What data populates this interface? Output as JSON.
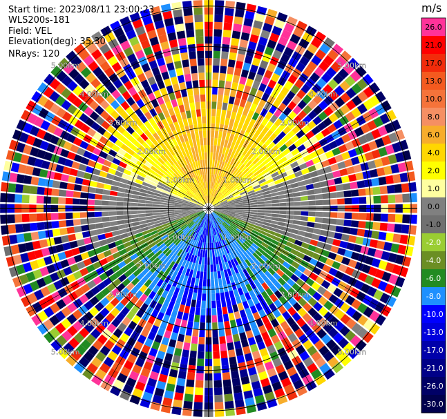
{
  "header": {
    "start_time": "Start time: 2023/08/11 23:00:23",
    "instrument": "WLS200s-181",
    "field": "Field: VEL",
    "elevation": "Elevation(deg): 35.30",
    "nrays": "NRays: 120"
  },
  "colorbar": {
    "unit": "m/s",
    "levels": [
      {
        "label": "26.0",
        "color": "#ff3399"
      },
      {
        "label": "21.0",
        "color": "#ff0000"
      },
      {
        "label": "17.0",
        "color": "#f22c0b"
      },
      {
        "label": "13.0",
        "color": "#f45a1f"
      },
      {
        "label": "10.0",
        "color": "#f5733a"
      },
      {
        "label": "8.0",
        "color": "#f58f63"
      },
      {
        "label": "6.0",
        "color": "#f7ad2b"
      },
      {
        "label": "4.0",
        "color": "#ffd700"
      },
      {
        "label": "2.0",
        "color": "#ffff00"
      },
      {
        "label": "1.0",
        "color": "#ffffa0"
      },
      {
        "label": "0.0",
        "color": "#808080"
      },
      {
        "label": "-1.0",
        "color": "#707070"
      },
      {
        "label": "-2.0",
        "color": "#9acd32"
      },
      {
        "label": "-4.0",
        "color": "#6b8e23"
      },
      {
        "label": "-6.0",
        "color": "#228b22"
      },
      {
        "label": "-8.0",
        "color": "#1e90ff"
      },
      {
        "label": "-10.0",
        "color": "#0000ff"
      },
      {
        "label": "-13.0",
        "color": "#0000dd"
      },
      {
        "label": "-17.0",
        "color": "#0000aa"
      },
      {
        "label": "-21.0",
        "color": "#000088"
      },
      {
        "label": "-26.0",
        "color": "#000066"
      },
      {
        "label": "-30.0",
        "color": "#00004d"
      }
    ]
  },
  "chart_data": {
    "type": "heatmap",
    "projection": "polar PPI",
    "field": "VEL",
    "nrays": 120,
    "range_ring_labels": [
      "1.00km",
      "2.00km",
      "3.00km",
      "4.00km",
      "5.00km"
    ],
    "range_rings_km": [
      1,
      2,
      3,
      4,
      5
    ],
    "spoke_angles_deg": [
      0,
      30,
      60,
      90,
      120,
      150,
      180,
      210,
      240,
      270,
      300,
      330
    ],
    "pattern": {
      "north_near": "positive (orange/yellow)",
      "south_near": "negative (green/blue)",
      "east_west_near": "near zero (gray)",
      "far_range": "noise"
    }
  }
}
